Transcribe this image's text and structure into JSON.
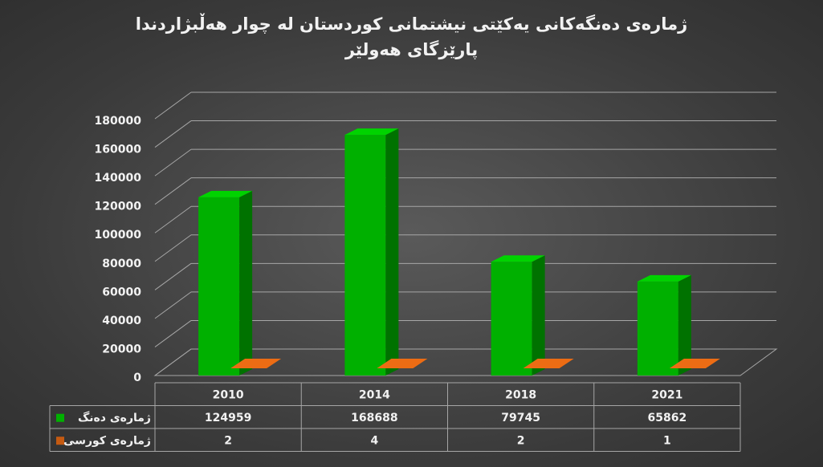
{
  "chart_data": {
    "type": "bar3d",
    "title": "ژمارەی دەنگەکانی یەکێتی نیشتمانی  کوردستان لە چوار هەڵبژاردندا پارێزگای هەولێر",
    "categories": [
      "2010",
      "2014",
      "2018",
      "2021"
    ],
    "series": [
      {
        "name": "ژمارەی دەنگ",
        "color": "#00b000",
        "values": [
          124959,
          168688,
          79745,
          65862
        ]
      },
      {
        "name": "ژمارەی کورسی",
        "color": "#c55a11",
        "values": [
          2,
          4,
          2,
          1
        ]
      }
    ],
    "ylim": [
      0,
      180000
    ],
    "yticks": [
      0,
      20000,
      40000,
      60000,
      80000,
      100000,
      120000,
      140000,
      160000,
      180000
    ],
    "grid": true,
    "data_table": true
  }
}
